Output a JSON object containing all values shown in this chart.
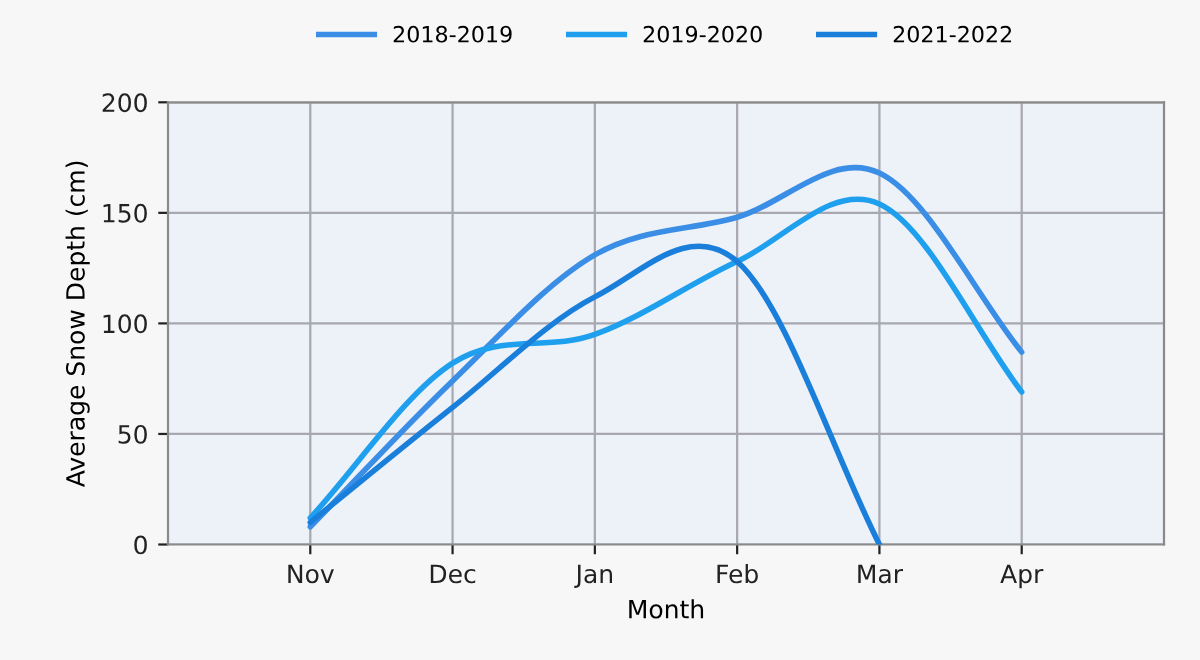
{
  "chart_data": {
    "type": "line",
    "xlabel": "Month",
    "ylabel": "Average Snow Depth (cm)",
    "categories": [
      "Nov",
      "Dec",
      "Jan",
      "Feb",
      "Mar",
      "Apr"
    ],
    "series": [
      {
        "name": "2018-2019",
        "color": "#3a8ee6",
        "values": [
          8,
          74,
          131,
          148,
          168,
          87
        ]
      },
      {
        "name": "2019-2020",
        "color": "#1fa0ef",
        "values": [
          12,
          82,
          95,
          128,
          154,
          69
        ]
      },
      {
        "name": "2021-2022",
        "color": "#1a7fdb",
        "values": [
          10,
          62,
          112,
          128,
          0,
          null
        ]
      }
    ],
    "ylim": [
      0,
      200
    ],
    "yticks": [
      0,
      50,
      100,
      150,
      200
    ],
    "grid": true,
    "legend": "top",
    "marker": "none",
    "line_style": "solid"
  }
}
